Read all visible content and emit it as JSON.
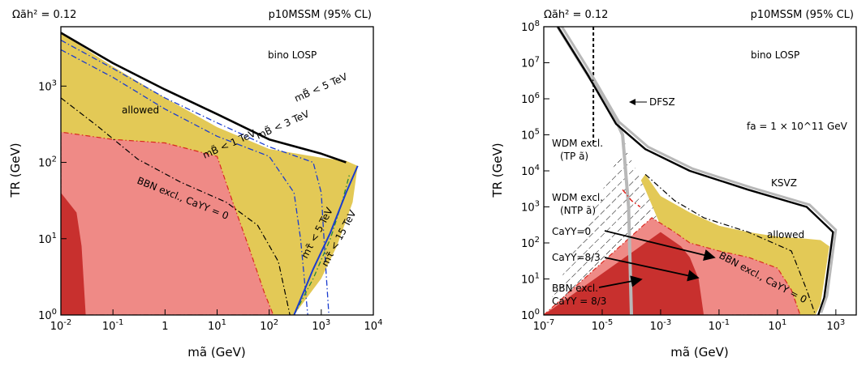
{
  "chart_data": [
    {
      "type": "area",
      "header_left": "Ωãh² = 0.12",
      "header_right": "p10MSSM (95% CL)",
      "xlabel": "mã (GeV)",
      "ylabel": "TR (GeV)",
      "xscale": "log",
      "yscale": "log",
      "xlim": [
        0.01,
        10000
      ],
      "ylim": [
        1,
        6000
      ],
      "x_ticks": [
        "10^-2",
        "10^-1",
        "1",
        "10^1",
        "10^2",
        "10^3",
        "10^4"
      ],
      "y_ticks": [
        "10^0",
        "10^1",
        "10^2",
        "10^3"
      ],
      "labels": {
        "lsp": "bino LOSP",
        "allowed": "allowed",
        "bbn": "BBN excl., CaYY = 0",
        "mB5": "mB̃ < 5 TeV",
        "mB3": "mB̃ < 3 TeV",
        "mB1": "mB̃ < 1 TeV",
        "mt5": "mτ̃ < 5 TeV",
        "mt15": "mτ̃ < 15 TeV"
      },
      "colors": {
        "allowed": "#e3c956",
        "bbn_light": "#ef8a86",
        "bbn_dark": "#c8302e",
        "bbn_edge": "#d9281f",
        "blue": "#1a3ccf",
        "green": "#2a8a3a"
      },
      "regions": {
        "allowed_boundary": [
          [
            0.01,
            5000
          ],
          [
            0.1,
            1800
          ],
          [
            1,
            700
          ],
          [
            10,
            290
          ],
          [
            100,
            150
          ],
          [
            1000,
            115
          ],
          [
            3000,
            105
          ],
          [
            5000,
            90
          ],
          [
            4000,
            30
          ],
          [
            2000,
            8
          ],
          [
            1000,
            3
          ],
          [
            300,
            1
          ]
        ],
        "bbn_light_boundary": [
          [
            0.01,
            250
          ],
          [
            0.1,
            200
          ],
          [
            1,
            180
          ],
          [
            10,
            120
          ],
          [
            20,
            30
          ],
          [
            40,
            8
          ],
          [
            80,
            2
          ],
          [
            120,
            1
          ]
        ],
        "bbn_dark_boundary": [
          [
            0.01,
            40
          ],
          [
            0.02,
            22
          ],
          [
            0.025,
            8
          ],
          [
            0.03,
            1
          ]
        ]
      },
      "curves": {
        "mB5": [
          [
            0.01,
            5000
          ],
          [
            0.1,
            2000
          ],
          [
            1,
            900
          ],
          [
            10,
            430
          ],
          [
            100,
            200
          ],
          [
            1000,
            130
          ],
          [
            3000,
            100
          ]
        ],
        "mB3": [
          [
            0.01,
            4000
          ],
          [
            0.1,
            1700
          ],
          [
            1,
            700
          ],
          [
            10,
            330
          ],
          [
            100,
            160
          ],
          [
            700,
            100
          ],
          [
            1000,
            40
          ],
          [
            1200,
            5
          ],
          [
            1400,
            1
          ]
        ],
        "mB1": [
          [
            0.01,
            3000
          ],
          [
            0.1,
            1300
          ],
          [
            1,
            500
          ],
          [
            10,
            220
          ],
          [
            100,
            120
          ],
          [
            300,
            40
          ],
          [
            400,
            10
          ],
          [
            500,
            2
          ],
          [
            550,
            1
          ]
        ],
        "bbn_dash": [
          [
            0.01,
            700
          ],
          [
            0.05,
            300
          ],
          [
            0.3,
            110
          ],
          [
            2,
            55
          ],
          [
            15,
            30
          ],
          [
            60,
            15
          ],
          [
            150,
            5
          ],
          [
            250,
            1
          ]
        ],
        "mt5": [
          [
            300,
            1
          ],
          [
            700,
            3
          ],
          [
            1500,
            10
          ],
          [
            2500,
            30
          ],
          [
            3500,
            70
          ]
        ],
        "mt15": [
          [
            300,
            1
          ],
          [
            700,
            4
          ],
          [
            1500,
            12
          ],
          [
            3000,
            40
          ],
          [
            5000,
            90
          ]
        ]
      }
    },
    {
      "type": "area",
      "header_left": "Ωãh² = 0.12",
      "header_right": "p10MSSM (95% CL)",
      "xlabel": "mã (GeV)",
      "ylabel": "TR (GeV)",
      "xscale": "log",
      "yscale": "log",
      "xlim": [
        1e-07,
        5000
      ],
      "ylim": [
        1,
        100000000
      ],
      "x_ticks": [
        "10^-7",
        "10^-5",
        "10^-3",
        "10^-1",
        "10^1",
        "10^3"
      ],
      "y_ticks": [
        "10^0",
        "10^1",
        "10^2",
        "10^3",
        "10^4",
        "10^5",
        "10^6",
        "10^7",
        "10^8"
      ],
      "labels": {
        "lsp": "bino LOSP",
        "fa": "fa = 1 × 10^11 GeV",
        "dfsz": "DFSZ",
        "ksvz": "KSVZ",
        "allowed": "allowed",
        "wdm_tp": "WDM excl.",
        "wdm_tp2": "(TP ã)",
        "wdm_ntp": "WDM excl.",
        "wdm_ntp2": "(NTP ã)",
        "c0": "CaYY=0",
        "c83": "CaYY=8/3",
        "bbn_left": "BBN excl.",
        "bbn_left2": "CaYY = 8/3",
        "bbn_right": "BBN excl., CaYY = 0"
      },
      "colors": {
        "allowed": "#e3c956",
        "bbn_light": "#ef8a86",
        "bbn_dark": "#c8302e",
        "ntp": "#e0201a",
        "c0": "#ef8a86",
        "grey": "#b8b8b8"
      },
      "regions": {
        "allowed_boundary": [
          [
            0.0003,
            8000
          ],
          [
            0.001,
            2000
          ],
          [
            0.01,
            700
          ],
          [
            0.1,
            300
          ],
          [
            1,
            200
          ],
          [
            10,
            150
          ],
          [
            100,
            130
          ],
          [
            300,
            120
          ],
          [
            600,
            80
          ],
          [
            300,
            2
          ],
          [
            200,
            1
          ]
        ],
        "hatch_boundary": [
          [
            6e-05,
            60000
          ],
          [
            0.0001,
            20000
          ],
          [
            0.0003,
            3000
          ],
          [
            0.001,
            300
          ],
          [
            0.003,
            20
          ],
          [
            0.005,
            1
          ]
        ],
        "bbn_light_boundary": [
          [
            0.0005,
            500
          ],
          [
            0.003,
            200
          ],
          [
            0.01,
            100
          ],
          [
            0.1,
            60
          ],
          [
            1,
            40
          ],
          [
            10,
            20
          ],
          [
            30,
            5
          ],
          [
            60,
            1
          ]
        ],
        "bbn_dark_boundary": [
          [
            0.001,
            200
          ],
          [
            0.005,
            80
          ],
          [
            0.01,
            40
          ],
          [
            0.02,
            10
          ],
          [
            0.03,
            1
          ]
        ]
      },
      "curves": {
        "dfsz": [
          [
            3e-07,
            100000000.0
          ],
          [
            3e-06,
            5000000.0
          ],
          [
            2e-05,
            500000.0
          ],
          [
            5e-05,
            100000.0
          ],
          [
            8e-05,
            1000.0
          ],
          [
            0.0001,
            1
          ]
        ],
        "ksvz": [
          [
            3e-07,
            100000000.0
          ],
          [
            3e-06,
            5000000.0
          ],
          [
            3e-05,
            200000.0
          ],
          [
            0.0003,
            40000.0
          ],
          [
            0.01,
            10000.0
          ],
          [
            1,
            3000
          ],
          [
            100,
            1000
          ],
          [
            800,
            200
          ],
          [
            400,
            3
          ],
          [
            250,
            1
          ]
        ],
        "wdm_tp": [
          [
            5e-06,
            100000000.0
          ],
          [
            5e-06,
            50000.0
          ]
        ],
        "ntp": [
          [
            5e-05,
            3000
          ],
          [
            0.0001,
            1500
          ],
          [
            0.0002,
            1000
          ]
        ],
        "dashdot": [
          [
            0.0003,
            8000
          ],
          [
            0.003,
            1500
          ],
          [
            0.03,
            500
          ],
          [
            1,
            200
          ],
          [
            30,
            60
          ],
          [
            100,
            5
          ],
          [
            200,
            1
          ]
        ]
      }
    }
  ]
}
